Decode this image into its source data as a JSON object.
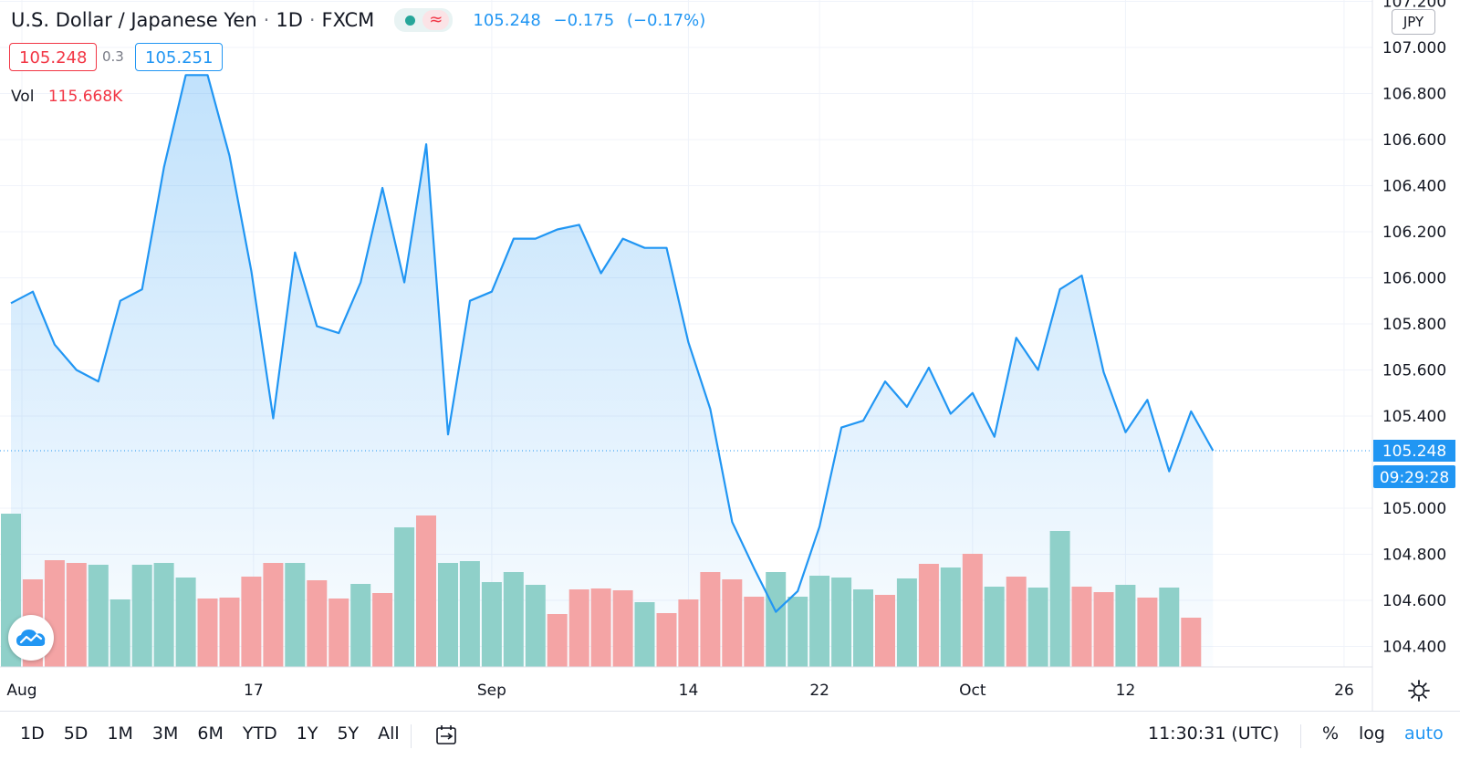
{
  "header": {
    "symbol": "U.S. Dollar / Japanese Yen",
    "interval": "1D",
    "exchange": "FXCM",
    "approx_symbol": "≈",
    "last": "105.248",
    "change": "−0.175",
    "change_pct": "(−0.17%)"
  },
  "price_boxes": {
    "bid": "105.248",
    "spread": "0.3",
    "ask": "105.251"
  },
  "volume_legend": {
    "label": "Vol",
    "value": "115.668K"
  },
  "currency_badge": "JPY",
  "last_price_label": "105.248",
  "countdown_label": "09:29:28",
  "toolbar": {
    "timeframes": [
      "1D",
      "5D",
      "1M",
      "3M",
      "6M",
      "YTD",
      "1Y",
      "5Y",
      "All"
    ],
    "clock": "11:30:31 (UTC)",
    "percent_label": "%",
    "log_label": "log",
    "auto_label": "auto"
  },
  "colors": {
    "line": "#2196f3",
    "up_volume": "#8fd0c9",
    "down_volume": "#f4a4a5",
    "red_text": "#f23645",
    "blue_text": "#2196f3"
  },
  "chart_data": {
    "type": "line",
    "series": [
      {
        "name": "U.S. Dollar / Japanese Yen",
        "values": [
          105.89,
          105.94,
          105.71,
          105.6,
          105.55,
          105.9,
          105.95,
          106.48,
          106.88,
          106.88,
          106.53,
          106.03,
          105.39,
          106.11,
          105.79,
          105.76,
          105.98,
          106.39,
          105.98,
          106.58,
          105.32,
          105.9,
          105.94,
          106.17,
          106.17,
          106.21,
          106.23,
          106.02,
          106.17,
          106.13,
          106.13,
          105.72,
          105.43,
          104.94,
          104.74,
          104.55,
          104.64,
          104.92,
          105.35,
          105.38,
          105.55,
          105.44,
          105.61,
          105.41,
          105.5,
          105.31,
          105.74,
          105.6,
          105.95,
          106.01,
          105.59,
          105.33,
          105.47,
          105.16,
          105.42,
          105.25
        ]
      },
      {
        "name": "Vol",
        "values": [
          168,
          96,
          117,
          114,
          112,
          74,
          112,
          114,
          98,
          75,
          76,
          99,
          114,
          114,
          95,
          75,
          91,
          81,
          153,
          166,
          114,
          116,
          93,
          104,
          90,
          58,
          85,
          86,
          84,
          71,
          59,
          74,
          104,
          96,
          77,
          104,
          77,
          100,
          98,
          85,
          79,
          97,
          113,
          109,
          124,
          88,
          99,
          87,
          149,
          88,
          82,
          90,
          76,
          87,
          54
        ],
        "direction": [
          "up",
          "down",
          "down",
          "down",
          "up",
          "up",
          "up",
          "up",
          "up",
          "down",
          "down",
          "down",
          "down",
          "up",
          "down",
          "down",
          "up",
          "down",
          "up",
          "down",
          "up",
          "up",
          "up",
          "up",
          "up",
          "down",
          "down",
          "down",
          "down",
          "up",
          "down",
          "down",
          "down",
          "down",
          "down",
          "up",
          "up",
          "up",
          "up",
          "up",
          "down",
          "up",
          "down",
          "up",
          "down",
          "up",
          "down",
          "up",
          "up",
          "down",
          "down",
          "up",
          "down",
          "up",
          "down"
        ]
      }
    ],
    "x_ticks": [
      {
        "label": "Aug",
        "index": 0.5
      },
      {
        "label": "17",
        "index": 11.1
      },
      {
        "label": "Sep",
        "index": 22.0
      },
      {
        "label": "14",
        "index": 31.0
      },
      {
        "label": "22",
        "index": 37.0
      },
      {
        "label": "Oct",
        "index": 44.0
      },
      {
        "label": "12",
        "index": 51.0
      },
      {
        "label": "26",
        "index": 61.0
      }
    ],
    "y_ticks": [
      "107.200",
      "107.000",
      "106.800",
      "106.600",
      "106.400",
      "106.200",
      "106.000",
      "105.800",
      "105.600",
      "105.400",
      "105.000",
      "104.800",
      "104.600",
      "104.400"
    ],
    "ylim": [
      104.29,
      107.21
    ],
    "volume_max": 168,
    "last_value": 105.248,
    "grid": true
  }
}
